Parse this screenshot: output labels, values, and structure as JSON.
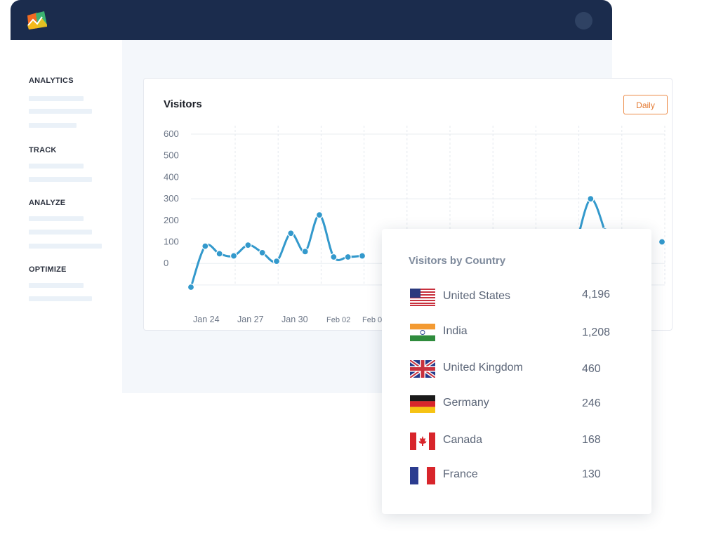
{
  "sidebar": {
    "sections": [
      {
        "label": "ANALYTICS"
      },
      {
        "label": "TRACK"
      },
      {
        "label": "ANALYZE"
      },
      {
        "label": "OPTIMIZE"
      }
    ]
  },
  "visitors_card": {
    "title": "Visitors",
    "period_button": "Daily"
  },
  "chart_data": {
    "type": "line",
    "title": "Visitors",
    "xlabel": "",
    "ylabel": "",
    "ylim": [
      -100,
      600
    ],
    "y_ticks": [
      "600",
      "500",
      "400",
      "300",
      "200",
      "100",
      "0"
    ],
    "x_tick_labels": [
      "Jan 24",
      "Jan 27",
      "Jan 30",
      "Feb 02",
      "Feb 0"
    ],
    "grid": true,
    "series": [
      {
        "color": "#3399cc",
        "x": [
          0,
          1,
          2,
          3,
          4,
          5,
          6,
          7,
          8,
          9,
          10,
          11,
          12,
          13,
          14,
          15,
          16,
          17,
          18,
          19,
          20,
          21,
          22,
          23,
          24,
          25,
          26,
          27,
          28,
          29,
          30,
          31,
          32,
          33
        ],
        "values": [
          -110,
          80,
          45,
          35,
          85,
          50,
          10,
          140,
          55,
          225,
          30,
          30,
          35,
          null,
          null,
          null,
          null,
          null,
          null,
          null,
          null,
          null,
          null,
          null,
          null,
          null,
          null,
          90,
          300,
          150,
          null,
          null,
          null,
          100
        ]
      }
    ]
  },
  "country_card": {
    "title": "Visitors by Country",
    "rows": [
      {
        "country": "United States",
        "value": "4,196",
        "flag": "us-flag-icon"
      },
      {
        "country": "India",
        "value": "1,208",
        "flag": "india-flag-icon"
      },
      {
        "country": "United Kingdom",
        "value": "460",
        "flag": "uk-flag-icon"
      },
      {
        "country": "Germany",
        "value": "246",
        "flag": "germany-flag-icon"
      },
      {
        "country": "Canada",
        "value": "168",
        "flag": "canada-flag-icon"
      },
      {
        "country": "France",
        "value": "130",
        "flag": "france-flag-icon"
      }
    ]
  },
  "colors": {
    "topbar": "#1b2c4d",
    "accent_line": "#3399cc",
    "daily_button": "#e4782f"
  }
}
